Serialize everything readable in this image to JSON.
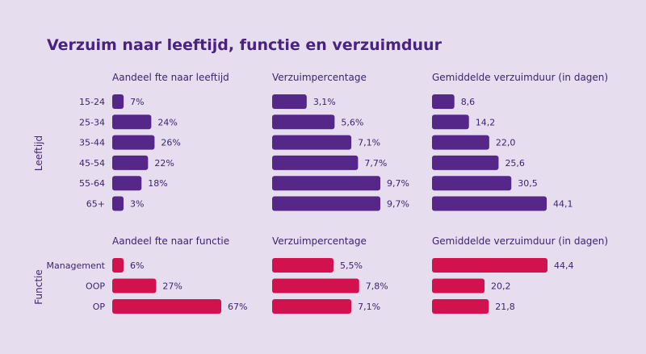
{
  "title": "Verzuim naar leeftijd, functie en verzuimduur",
  "colors": {
    "leeftijd": "#552789",
    "functie": "#d2124e",
    "text": "#3a2570",
    "background": "#e6ddee"
  },
  "chart_data": [
    {
      "type": "bar",
      "group": "Leeftijd",
      "title": "Aandeel fte naar leeftijd",
      "categories": [
        "15-24",
        "25-34",
        "35-44",
        "45-54",
        "55-64",
        "65+"
      ],
      "values": [
        7,
        24,
        26,
        22,
        18,
        3
      ],
      "value_labels": [
        "7%",
        "24%",
        "26%",
        "22%",
        "18%",
        "3%"
      ],
      "orientation": "horizontal"
    },
    {
      "type": "bar",
      "group": "Leeftijd",
      "title": "Verzuimpercentage",
      "categories": [
        "15-24",
        "25-34",
        "35-44",
        "45-54",
        "55-64",
        "65+"
      ],
      "values": [
        3.1,
        5.6,
        7.1,
        7.7,
        9.7,
        9.7
      ],
      "value_labels": [
        "3,1%",
        "5,6%",
        "7,1%",
        "7,7%",
        "9,7%",
        "9,7%"
      ],
      "orientation": "horizontal"
    },
    {
      "type": "bar",
      "group": "Leeftijd",
      "title": "Gemiddelde verzuimduur (in dagen)",
      "categories": [
        "15-24",
        "25-34",
        "35-44",
        "45-54",
        "55-64",
        "65+"
      ],
      "values": [
        8.6,
        14.2,
        22.0,
        25.6,
        30.5,
        44.1
      ],
      "value_labels": [
        "8,6",
        "14,2",
        "22,0",
        "25,6",
        "30,5",
        "44,1"
      ],
      "orientation": "horizontal"
    },
    {
      "type": "bar",
      "group": "Functie",
      "title": "Aandeel fte naar functie",
      "categories": [
        "Management",
        "OOP",
        "OP"
      ],
      "values": [
        6,
        27,
        67
      ],
      "value_labels": [
        "6%",
        "27%",
        "67%"
      ],
      "orientation": "horizontal"
    },
    {
      "type": "bar",
      "group": "Functie",
      "title": "Verzuimpercentage",
      "categories": [
        "Management",
        "OOP",
        "OP"
      ],
      "values": [
        5.5,
        7.8,
        7.1
      ],
      "value_labels": [
        "5,5%",
        "7,8%",
        "7,1%"
      ],
      "orientation": "horizontal"
    },
    {
      "type": "bar",
      "group": "Functie",
      "title": "Gemiddelde verzuimduur (in dagen)",
      "categories": [
        "Management",
        "OOP",
        "OP"
      ],
      "values": [
        44.4,
        20.2,
        21.8
      ],
      "value_labels": [
        "44,4",
        "20,2",
        "21,8"
      ],
      "orientation": "horizontal"
    }
  ]
}
